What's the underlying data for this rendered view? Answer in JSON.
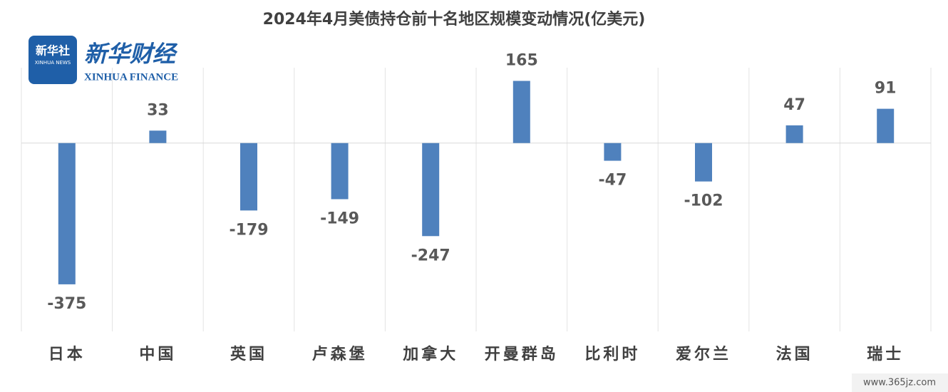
{
  "chart_data": {
    "type": "bar",
    "title": "2024年4月美债持仓前十名地区规模变动情况(亿美元)",
    "categories": [
      "日本",
      "中国",
      "英国",
      "卢森堡",
      "加拿大",
      "开曼群岛",
      "比利时",
      "爱尔兰",
      "法国",
      "瑞士"
    ],
    "values": [
      -375,
      33,
      -179,
      -149,
      -247,
      165,
      -47,
      -102,
      47,
      91
    ],
    "color": "#4f81bd",
    "ylim": [
      -500,
      200
    ]
  },
  "logo": {
    "badge": "新华社",
    "badge_sub": "XINHUA NEWS",
    "name": "新华财经",
    "name_en": "XINHUA FINANCE"
  },
  "watermark": "www.365jz.com"
}
